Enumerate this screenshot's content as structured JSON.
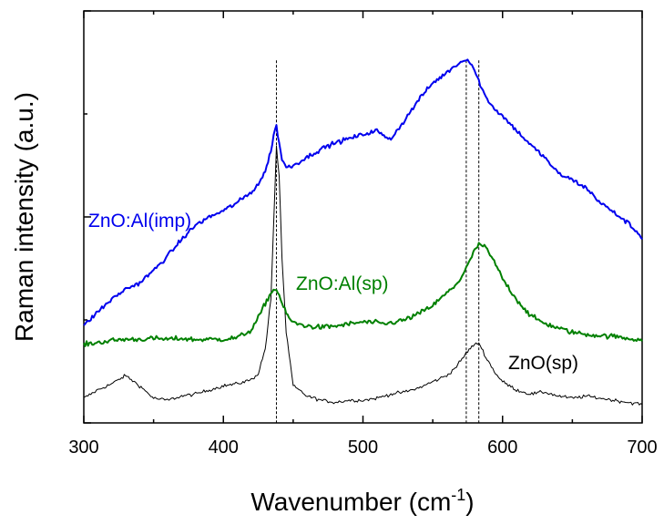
{
  "chart_data": {
    "type": "line",
    "title": "",
    "xlabel": "Wavenumber (cm",
    "xlabel_superscript": "-1",
    "xlabel_suffix": ")",
    "ylabel": "Raman intensity (a.u.)",
    "xlim": [
      300,
      700
    ],
    "ylim": [
      0,
      100
    ],
    "x_ticks": [
      "300",
      "400",
      "500",
      "600",
      "700"
    ],
    "y_tick_labels_shown": false,
    "grid": false,
    "legend": "none (series labeled inline)",
    "reference_lines_x": [
      438,
      574,
      583
    ],
    "x": [
      300,
      310,
      320,
      330,
      340,
      350,
      360,
      370,
      380,
      390,
      400,
      410,
      420,
      425,
      430,
      434,
      436,
      438,
      440,
      442,
      445,
      450,
      460,
      470,
      480,
      490,
      500,
      510,
      515,
      520,
      530,
      540,
      550,
      560,
      565,
      570,
      574,
      578,
      583,
      588,
      595,
      600,
      610,
      620,
      630,
      640,
      650,
      660,
      670,
      680,
      690,
      700
    ],
    "series": [
      {
        "name": "ZnO:Al(imp)",
        "color": "#0000ee",
        "values": [
          23.5,
          27,
          30,
          32.5,
          34,
          37,
          40.5,
          44.5,
          48,
          50,
          51.5,
          53.5,
          56,
          58,
          61,
          66,
          70,
          72,
          68,
          64,
          62,
          62.5,
          64.5,
          66.5,
          68,
          69,
          70,
          71,
          69.5,
          69,
          73.5,
          78.5,
          82.5,
          85,
          86.5,
          87.5,
          88.5,
          87,
          83,
          79,
          76,
          74.5,
          71,
          67.5,
          64.5,
          60.5,
          59,
          57,
          53.5,
          51,
          48.5,
          45
        ]
      },
      {
        "name": "ZnO:Al(sp)",
        "color": "#008000",
        "values": [
          19,
          19.5,
          20,
          20.3,
          20.3,
          20.5,
          20.3,
          20.5,
          20.2,
          20.3,
          20.3,
          20.7,
          22.5,
          25.5,
          29,
          31.5,
          32.2,
          32.5,
          31,
          29,
          26.5,
          24.3,
          23.5,
          23.2,
          23.5,
          24,
          24.5,
          24.3,
          24,
          24.3,
          25,
          26.5,
          28.5,
          31.5,
          33,
          35,
          37.5,
          40.5,
          43.5,
          42.5,
          38.5,
          35,
          30,
          26,
          24.2,
          23,
          22,
          21.5,
          21.2,
          21,
          20.5,
          20.2
        ]
      },
      {
        "name": "ZnO(sp)",
        "color": "#000000",
        "values": [
          6,
          8,
          9.5,
          11.5,
          9,
          6,
          5.5,
          6.5,
          7,
          8,
          9,
          9.5,
          10.5,
          12,
          18,
          30,
          48,
          67,
          60,
          40,
          22,
          9,
          6.5,
          5.5,
          5,
          5.5,
          5.5,
          6,
          6.5,
          7,
          7.5,
          8.5,
          10,
          11.5,
          13,
          15,
          17,
          18.5,
          19.5,
          16,
          12,
          10,
          8,
          7,
          7.5,
          6.5,
          6,
          6.5,
          6,
          5.5,
          5,
          4.5
        ]
      }
    ],
    "annotations": [
      {
        "text": "ZnO:Al(imp)",
        "color": "#0000ee"
      },
      {
        "text": "ZnO:Al(sp)",
        "color": "#008000"
      },
      {
        "text": "ZnO(sp)",
        "color": "#000000"
      }
    ]
  }
}
